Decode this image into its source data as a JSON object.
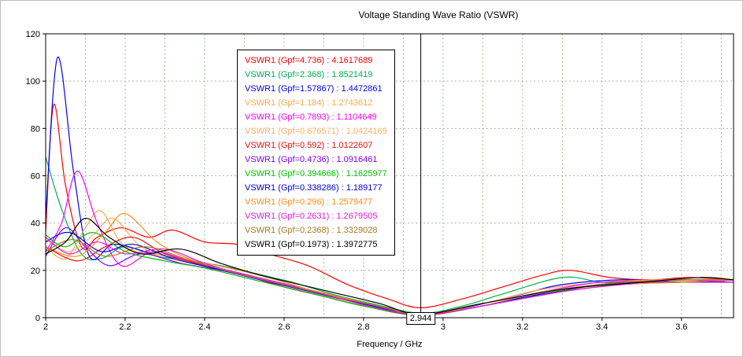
{
  "chart_data": {
    "type": "line",
    "title": "Voltage Standing Wave Ratio (VSWR)",
    "xlabel": "Frequency / GHz",
    "ylabel": "",
    "xlim": [
      2,
      3.731
    ],
    "ylim": [
      0,
      120
    ],
    "x_ticks": [
      2,
      2.2,
      2.4,
      2.6,
      2.8,
      3,
      3.2,
      3.4,
      3.6
    ],
    "y_ticks": [
      0,
      20,
      40,
      60,
      80,
      100,
      120
    ],
    "x_minor_step": 0.1,
    "grid": true,
    "grid_color": "#9dbf9d",
    "axis_color": "#000000",
    "legend_position": "upper-left-center",
    "marker": {
      "x": 2.944,
      "label": "2.944"
    },
    "series": [
      {
        "name": "VSWR1",
        "gpf": "4.736",
        "value_at_marker": "4.1617689",
        "label": "VSWR1 (Gpf=4.736) : 4.1617689",
        "color": "#FF0000",
        "points": [
          [
            2.0,
            36
          ],
          [
            2.02,
            90
          ],
          [
            2.05,
            56
          ],
          [
            2.09,
            30
          ],
          [
            2.13,
            34
          ],
          [
            2.19,
            38
          ],
          [
            2.26,
            34
          ],
          [
            2.32,
            37
          ],
          [
            2.4,
            32
          ],
          [
            2.48,
            31
          ],
          [
            2.56,
            27
          ],
          [
            2.66,
            22
          ],
          [
            2.76,
            14
          ],
          [
            2.86,
            8
          ],
          [
            2.944,
            4.2
          ],
          [
            3.05,
            8
          ],
          [
            3.15,
            13
          ],
          [
            3.25,
            18
          ],
          [
            3.32,
            20
          ],
          [
            3.42,
            17
          ],
          [
            3.52,
            16
          ],
          [
            3.62,
            17
          ],
          [
            3.731,
            16
          ]
        ]
      },
      {
        "name": "VSWR1",
        "gpf": "2.368",
        "value_at_marker": "1.8521419",
        "label": "VSWR1 (Gpf=2.368) : 1.8521419",
        "color": "#00B050",
        "points": [
          [
            2.0,
            68
          ],
          [
            2.04,
            46
          ],
          [
            2.09,
            27
          ],
          [
            2.14,
            25
          ],
          [
            2.2,
            30
          ],
          [
            2.28,
            26
          ],
          [
            2.36,
            24
          ],
          [
            2.44,
            22
          ],
          [
            2.52,
            19
          ],
          [
            2.62,
            15
          ],
          [
            2.72,
            10
          ],
          [
            2.82,
            6
          ],
          [
            2.944,
            1.9
          ],
          [
            3.05,
            5
          ],
          [
            3.15,
            10
          ],
          [
            3.3,
            17
          ],
          [
            3.4,
            15
          ],
          [
            3.5,
            15
          ],
          [
            3.62,
            16
          ],
          [
            3.731,
            16
          ]
        ]
      },
      {
        "name": "VSWR1",
        "gpf": "1.57867",
        "value_at_marker": "1.4472861",
        "label": "VSWR1 (Gpf=1.57867) : 1.4472861",
        "color": "#0000FF",
        "points": [
          [
            2.0,
            42
          ],
          [
            2.03,
            110
          ],
          [
            2.07,
            62
          ],
          [
            2.11,
            26
          ],
          [
            2.17,
            31
          ],
          [
            2.25,
            28
          ],
          [
            2.33,
            25
          ],
          [
            2.41,
            22
          ],
          [
            2.5,
            18
          ],
          [
            2.6,
            13
          ],
          [
            2.7,
            9
          ],
          [
            2.8,
            5
          ],
          [
            2.944,
            1.45
          ],
          [
            3.05,
            4
          ],
          [
            3.2,
            10
          ],
          [
            3.3,
            14
          ],
          [
            3.45,
            16
          ],
          [
            3.6,
            15
          ],
          [
            3.731,
            16
          ]
        ]
      },
      {
        "name": "VSWR1",
        "gpf": "1.184",
        "value_at_marker": "1.2743612",
        "label": "VSWR1 (Gpf=1.184) : 1.2743612",
        "color": "#FFA64D",
        "points": [
          [
            2.0,
            30
          ],
          [
            2.05,
            25
          ],
          [
            2.1,
            38
          ],
          [
            2.14,
            45
          ],
          [
            2.2,
            30
          ],
          [
            2.3,
            26
          ],
          [
            2.4,
            22
          ],
          [
            2.5,
            18
          ],
          [
            2.6,
            13
          ],
          [
            2.7,
            9
          ],
          [
            2.8,
            5
          ],
          [
            2.944,
            1.27
          ],
          [
            3.1,
            6
          ],
          [
            3.25,
            12
          ],
          [
            3.4,
            15
          ],
          [
            3.55,
            16
          ],
          [
            3.731,
            16
          ]
        ]
      },
      {
        "name": "VSWR1",
        "gpf": "0.7893",
        "value_at_marker": "1.1104649",
        "label": "VSWR1 (Gpf=0.7893) : 1.1104649",
        "color": "#FF00FF",
        "points": [
          [
            2.0,
            28
          ],
          [
            2.04,
            40
          ],
          [
            2.08,
            62
          ],
          [
            2.13,
            40
          ],
          [
            2.19,
            22
          ],
          [
            2.27,
            28
          ],
          [
            2.36,
            24
          ],
          [
            2.46,
            20
          ],
          [
            2.56,
            16
          ],
          [
            2.66,
            12
          ],
          [
            2.76,
            8
          ],
          [
            2.86,
            4
          ],
          [
            2.944,
            1.11
          ],
          [
            3.1,
            5
          ],
          [
            3.25,
            11
          ],
          [
            3.4,
            15
          ],
          [
            3.55,
            15
          ],
          [
            3.731,
            15
          ]
        ]
      },
      {
        "name": "VSWR1",
        "gpf": "0.676571",
        "value_at_marker": "1.0424169",
        "label": "VSWR1 (Gpf=0.676571) : 1.0424169",
        "color": "#FFAE66",
        "points": [
          [
            2.0,
            33
          ],
          [
            2.06,
            28
          ],
          [
            2.12,
            35
          ],
          [
            2.17,
            42
          ],
          [
            2.24,
            30
          ],
          [
            2.32,
            25
          ],
          [
            2.42,
            21
          ],
          [
            2.52,
            17
          ],
          [
            2.62,
            13
          ],
          [
            2.72,
            9
          ],
          [
            2.82,
            5
          ],
          [
            2.944,
            1.04
          ],
          [
            3.1,
            5
          ],
          [
            3.25,
            11
          ],
          [
            3.4,
            14
          ],
          [
            3.55,
            15
          ],
          [
            3.731,
            16
          ]
        ]
      },
      {
        "name": "VSWR1",
        "gpf": "0.592",
        "value_at_marker": "1.0122607",
        "label": "VSWR1 (Gpf=0.592) : 1.0122607",
        "color": "#EE1111",
        "points": [
          [
            2.0,
            30
          ],
          [
            2.08,
            24
          ],
          [
            2.15,
            30
          ],
          [
            2.22,
            34
          ],
          [
            2.3,
            27
          ],
          [
            2.4,
            22
          ],
          [
            2.5,
            18
          ],
          [
            2.6,
            13
          ],
          [
            2.7,
            9
          ],
          [
            2.8,
            5
          ],
          [
            2.944,
            1.01
          ],
          [
            3.1,
            5
          ],
          [
            3.25,
            10
          ],
          [
            3.4,
            14
          ],
          [
            3.55,
            15
          ],
          [
            3.731,
            15
          ]
        ]
      },
      {
        "name": "VSWR1",
        "gpf": "0.4736",
        "value_at_marker": "1.0916461",
        "label": "VSWR1 (Gpf=0.4736) : 1.0916461",
        "color": "#8000FF",
        "points": [
          [
            2.0,
            26
          ],
          [
            2.05,
            38
          ],
          [
            2.1,
            30
          ],
          [
            2.16,
            22
          ],
          [
            2.24,
            27
          ],
          [
            2.34,
            23
          ],
          [
            2.44,
            20
          ],
          [
            2.54,
            16
          ],
          [
            2.64,
            12
          ],
          [
            2.74,
            8
          ],
          [
            2.84,
            4.5
          ],
          [
            2.944,
            1.09
          ],
          [
            3.1,
            5
          ],
          [
            3.25,
            10
          ],
          [
            3.4,
            14
          ],
          [
            3.55,
            15
          ],
          [
            3.731,
            15
          ]
        ]
      },
      {
        "name": "VSWR1",
        "gpf": "0.394666",
        "value_at_marker": "1.1625977",
        "label": "VSWR1 (Gpf=0.394666) : 1.1625977",
        "color": "#00C000",
        "points": [
          [
            2.0,
            35
          ],
          [
            2.05,
            30
          ],
          [
            2.12,
            36
          ],
          [
            2.2,
            28
          ],
          [
            2.3,
            24
          ],
          [
            2.4,
            21
          ],
          [
            2.5,
            17
          ],
          [
            2.6,
            13
          ],
          [
            2.7,
            9
          ],
          [
            2.8,
            5
          ],
          [
            2.944,
            1.16
          ],
          [
            3.1,
            5
          ],
          [
            3.25,
            10
          ],
          [
            3.4,
            14
          ],
          [
            3.6,
            15
          ],
          [
            3.731,
            16
          ]
        ]
      },
      {
        "name": "VSWR1",
        "gpf": "0.338286",
        "value_at_marker": "1.189177",
        "label": "VSWR1 (Gpf=0.338286) : 1.189177",
        "color": "#0000E0",
        "points": [
          [
            2.0,
            32
          ],
          [
            2.06,
            36
          ],
          [
            2.14,
            28
          ],
          [
            2.22,
            31
          ],
          [
            2.32,
            25
          ],
          [
            2.42,
            21
          ],
          [
            2.52,
            17
          ],
          [
            2.62,
            13
          ],
          [
            2.72,
            9
          ],
          [
            2.82,
            5
          ],
          [
            2.944,
            1.19
          ],
          [
            3.1,
            5
          ],
          [
            3.25,
            10
          ],
          [
            3.45,
            14
          ],
          [
            3.6,
            15
          ],
          [
            3.731,
            16
          ]
        ]
      },
      {
        "name": "VSWR1",
        "gpf": "0.296",
        "value_at_marker": "1.2579477",
        "label": "VSWR1 (Gpf=0.296) : 1.2579477",
        "color": "#FF8C1A",
        "points": [
          [
            2.0,
            30
          ],
          [
            2.08,
            26
          ],
          [
            2.15,
            36
          ],
          [
            2.2,
            44
          ],
          [
            2.28,
            32
          ],
          [
            2.36,
            25
          ],
          [
            2.46,
            21
          ],
          [
            2.56,
            17
          ],
          [
            2.66,
            12
          ],
          [
            2.76,
            8
          ],
          [
            2.86,
            4
          ],
          [
            2.944,
            1.26
          ],
          [
            3.1,
            5
          ],
          [
            3.3,
            11
          ],
          [
            3.45,
            14
          ],
          [
            3.6,
            15
          ],
          [
            3.731,
            16
          ]
        ]
      },
      {
        "name": "VSWR1",
        "gpf": "0.2631",
        "value_at_marker": "1.2679505",
        "label": "VSWR1 (Gpf=0.2631) : 1.2679505",
        "color": "#E619E6",
        "points": [
          [
            2.0,
            34
          ],
          [
            2.06,
            27
          ],
          [
            2.13,
            32
          ],
          [
            2.2,
            27
          ],
          [
            2.3,
            29
          ],
          [
            2.4,
            23
          ],
          [
            2.5,
            18
          ],
          [
            2.6,
            14
          ],
          [
            2.7,
            10
          ],
          [
            2.8,
            5.5
          ],
          [
            2.944,
            1.27
          ],
          [
            3.1,
            5
          ],
          [
            3.3,
            11
          ],
          [
            3.45,
            14
          ],
          [
            3.6,
            16
          ],
          [
            3.731,
            15
          ]
        ]
      },
      {
        "name": "VSWR1",
        "gpf": "0.2368",
        "value_at_marker": "1.3329028",
        "label": "VSWR1 (Gpf=0.2368) : 1.3329028",
        "color": "#AA7722",
        "points": [
          [
            2.0,
            28
          ],
          [
            2.07,
            33
          ],
          [
            2.15,
            26
          ],
          [
            2.25,
            30
          ],
          [
            2.35,
            25
          ],
          [
            2.45,
            20
          ],
          [
            2.55,
            16
          ],
          [
            2.65,
            12
          ],
          [
            2.75,
            8
          ],
          [
            2.85,
            4.5
          ],
          [
            2.944,
            1.33
          ],
          [
            3.1,
            6
          ],
          [
            3.3,
            12
          ],
          [
            3.45,
            15
          ],
          [
            3.6,
            16
          ],
          [
            3.731,
            16
          ]
        ]
      },
      {
        "name": "VSWR1",
        "gpf": "0.1973",
        "value_at_marker": "1.3972775",
        "label": "VSWR1 (Gpf=0.1973) : 1.3972775",
        "color": "#000000",
        "points": [
          [
            2.0,
            27
          ],
          [
            2.05,
            32
          ],
          [
            2.1,
            42
          ],
          [
            2.16,
            34
          ],
          [
            2.24,
            27
          ],
          [
            2.34,
            29
          ],
          [
            2.44,
            23
          ],
          [
            2.54,
            18
          ],
          [
            2.64,
            14
          ],
          [
            2.74,
            10
          ],
          [
            2.84,
            6
          ],
          [
            2.944,
            1.4
          ],
          [
            3.1,
            6
          ],
          [
            3.3,
            12
          ],
          [
            3.5,
            15
          ],
          [
            3.65,
            17
          ],
          [
            3.731,
            16
          ]
        ]
      }
    ]
  }
}
